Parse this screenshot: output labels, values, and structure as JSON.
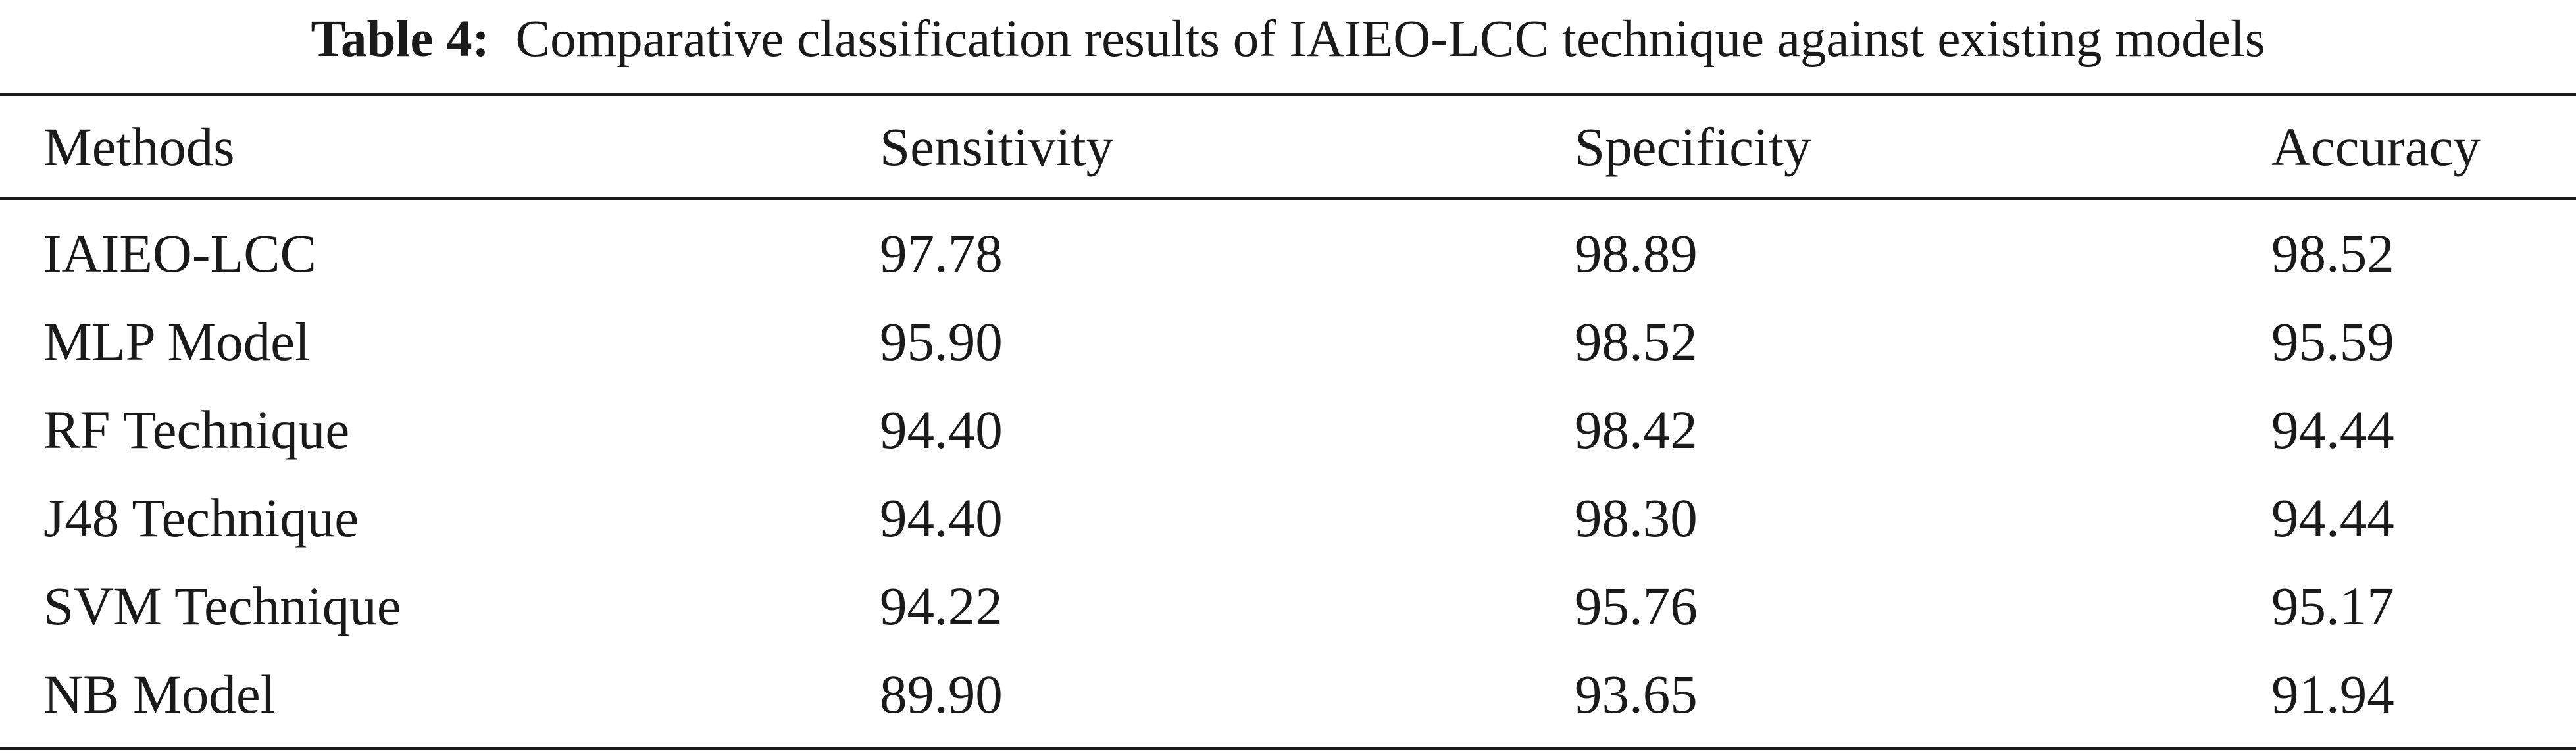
{
  "caption": {
    "label": "Table 4:",
    "text": "Comparative classification results of IAIEO-LCC technique against existing models"
  },
  "table": {
    "columns": [
      "Methods",
      "Sensitivity",
      "Specificity",
      "Accuracy"
    ],
    "rows": [
      [
        "IAIEO-LCC",
        "97.78",
        "98.89",
        "98.52"
      ],
      [
        "MLP Model",
        "95.90",
        "98.52",
        "95.59"
      ],
      [
        "RF Technique",
        "94.40",
        "98.42",
        "94.44"
      ],
      [
        "J48 Technique",
        "94.40",
        "98.30",
        "94.44"
      ],
      [
        "SVM Technique",
        "94.22",
        "95.76",
        "95.17"
      ],
      [
        "NB Model",
        "89.90",
        "93.65",
        "91.94"
      ]
    ]
  }
}
